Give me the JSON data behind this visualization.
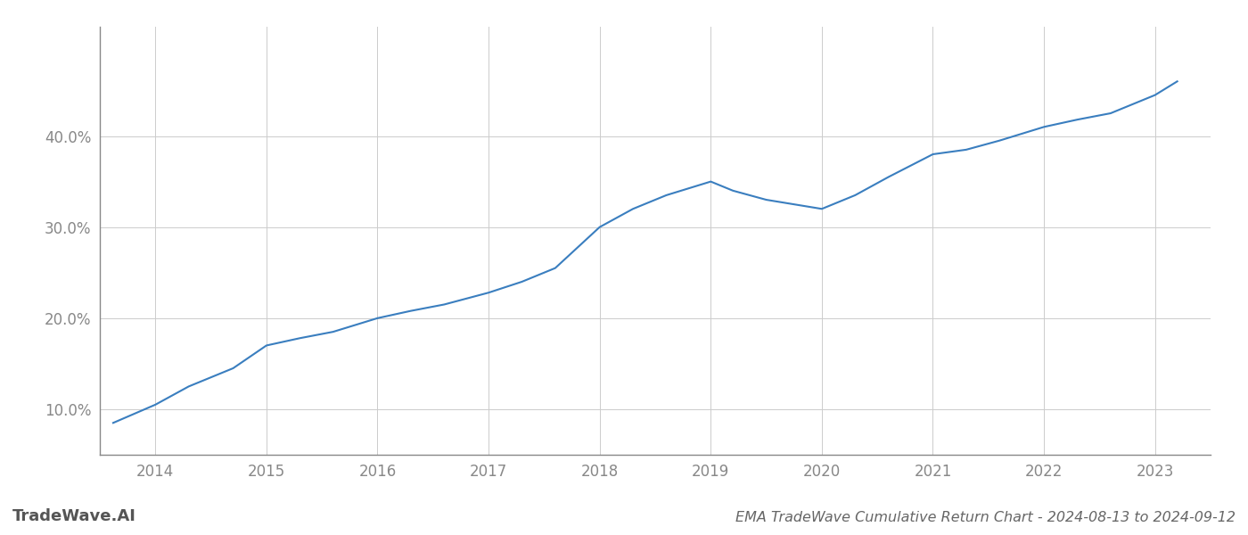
{
  "x": [
    2013.62,
    2014.0,
    2014.3,
    2014.7,
    2015.0,
    2015.3,
    2015.6,
    2016.0,
    2016.3,
    2016.6,
    2017.0,
    2017.3,
    2017.6,
    2018.0,
    2018.3,
    2018.6,
    2019.0,
    2019.2,
    2019.5,
    2019.75,
    2020.0,
    2020.3,
    2020.6,
    2021.0,
    2021.3,
    2021.6,
    2022.0,
    2022.3,
    2022.6,
    2023.0,
    2023.2
  ],
  "y": [
    8.5,
    10.5,
    12.5,
    14.5,
    17.0,
    17.8,
    18.5,
    20.0,
    20.8,
    21.5,
    22.8,
    24.0,
    25.5,
    30.0,
    32.0,
    33.5,
    35.0,
    34.0,
    33.0,
    32.5,
    32.0,
    33.5,
    35.5,
    38.0,
    38.5,
    39.5,
    41.0,
    41.8,
    42.5,
    44.5,
    46.0
  ],
  "line_color": "#3a7ebf",
  "line_width": 1.5,
  "title": "EMA TradeWave Cumulative Return Chart - 2024-08-13 to 2024-09-12",
  "watermark": "TradeWave.AI",
  "bg_color": "#ffffff",
  "grid_color": "#cccccc",
  "axis_color": "#888888",
  "tick_color": "#888888",
  "title_color": "#666666",
  "watermark_color": "#555555",
  "xlim": [
    2013.5,
    2023.5
  ],
  "ylim": [
    5.0,
    52.0
  ],
  "xticks": [
    2014,
    2015,
    2016,
    2017,
    2018,
    2019,
    2020,
    2021,
    2022,
    2023
  ],
  "yticks": [
    10.0,
    20.0,
    30.0,
    40.0
  ],
  "title_fontsize": 11.5,
  "watermark_fontsize": 13,
  "tick_fontsize": 12
}
